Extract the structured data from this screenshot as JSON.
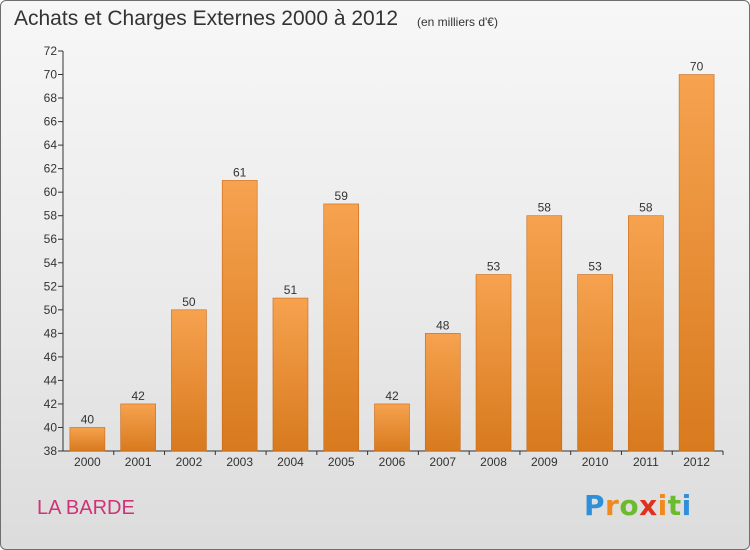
{
  "header": {
    "title": "Achats et Charges Externes 2000 à 2012",
    "subtitle": "(en milliers d'€)"
  },
  "footer": {
    "place": "LA BARDE",
    "logo": "Proxiti"
  },
  "colors": {
    "bar_top": "#f6a24f",
    "bar_bottom": "#d87a1e",
    "bar_edge": "#c8691a",
    "place": "#d0327a"
  },
  "chart_data": {
    "type": "bar",
    "title": "Achats et Charges Externes 2000 à 2012",
    "subtitle": "(en milliers d'€)",
    "xlabel": "",
    "ylabel": "",
    "categories": [
      "2000",
      "2001",
      "2002",
      "2003",
      "2004",
      "2005",
      "2006",
      "2007",
      "2008",
      "2009",
      "2010",
      "2011",
      "2012"
    ],
    "values": [
      40,
      42,
      50,
      61,
      51,
      59,
      42,
      48,
      53,
      58,
      53,
      58,
      70
    ],
    "ylim": [
      38,
      72
    ],
    "yticks": [
      38,
      40,
      42,
      44,
      46,
      48,
      50,
      52,
      54,
      56,
      58,
      60,
      62,
      64,
      66,
      68,
      70,
      72
    ],
    "grid": false,
    "data_labels": true
  }
}
